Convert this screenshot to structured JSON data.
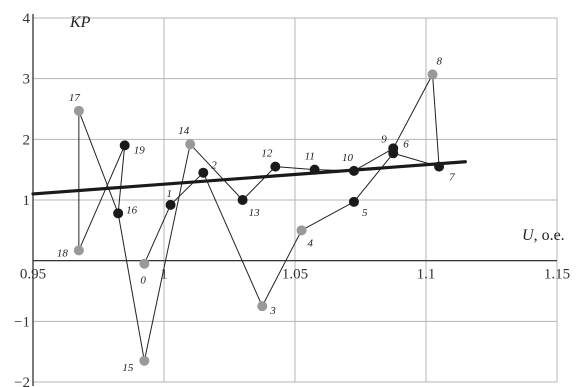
{
  "chart_data": {
    "type": "scatter",
    "title": "",
    "xlabel": "U, o.e.",
    "xlabel_italic_part": "U",
    "xlabel_rest": ", o.e.",
    "ylabel": "KP",
    "xlim": [
      0.95,
      1.15
    ],
    "ylim": [
      -2,
      4
    ],
    "grid": true,
    "x_ticks": [
      0.95,
      1.0,
      1.05,
      1.1,
      1.15
    ],
    "x_tick_labels": [
      "0.95",
      "1",
      "1.05",
      "1.1",
      "1.15"
    ],
    "y_ticks": [
      -2,
      -1,
      0,
      1,
      2,
      3,
      4
    ],
    "y_tick_labels": [
      "−2",
      "−1",
      "",
      "1",
      "2",
      "3",
      "4"
    ],
    "points": [
      {
        "label": "0",
        "x": 0.9925,
        "y": -0.05,
        "color": "#999999"
      },
      {
        "label": "1",
        "x": 1.0025,
        "y": 0.92,
        "color": "#1a1a1a"
      },
      {
        "label": "2",
        "x": 1.015,
        "y": 1.45,
        "color": "#1a1a1a"
      },
      {
        "label": "3",
        "x": 1.0375,
        "y": -0.75,
        "color": "#999999"
      },
      {
        "label": "4",
        "x": 1.0525,
        "y": 0.5,
        "color": "#999999"
      },
      {
        "label": "5",
        "x": 1.0725,
        "y": 0.97,
        "color": "#1a1a1a"
      },
      {
        "label": "6",
        "x": 1.0875,
        "y": 1.77,
        "color": "#1a1a1a"
      },
      {
        "label": "7",
        "x": 1.105,
        "y": 1.55,
        "color": "#1a1a1a"
      },
      {
        "label": "8",
        "x": 1.1025,
        "y": 3.07,
        "color": "#999999"
      },
      {
        "label": "9",
        "x": 1.0875,
        "y": 1.85,
        "color": "#1a1a1a"
      },
      {
        "label": "10",
        "x": 1.0725,
        "y": 1.48,
        "color": "#1a1a1a"
      },
      {
        "label": "11",
        "x": 1.0575,
        "y": 1.5,
        "color": "#1a1a1a"
      },
      {
        "label": "12",
        "x": 1.0425,
        "y": 1.55,
        "color": "#1a1a1a"
      },
      {
        "label": "13",
        "x": 1.03,
        "y": 1.0,
        "color": "#1a1a1a"
      },
      {
        "label": "14",
        "x": 1.01,
        "y": 1.92,
        "color": "#999999"
      },
      {
        "label": "15",
        "x": 0.9925,
        "y": -1.65,
        "color": "#999999"
      },
      {
        "label": "16",
        "x": 0.9825,
        "y": 0.78,
        "color": "#1a1a1a"
      },
      {
        "label": "17",
        "x": 0.9675,
        "y": 2.47,
        "color": "#999999"
      },
      {
        "label": "18",
        "x": 0.9675,
        "y": 0.17,
        "color": "#999999"
      },
      {
        "label": "19",
        "x": 0.985,
        "y": 1.9,
        "color": "#1a1a1a"
      }
    ],
    "connection_order": [
      "19",
      "16",
      "15",
      "14",
      "13",
      "12",
      "11",
      "10",
      "9",
      "8",
      "7",
      "6",
      "5",
      "4",
      "3",
      "2",
      "1",
      "0"
    ],
    "extra_segments": [
      [
        "17",
        "18"
      ],
      [
        "18",
        "19"
      ],
      [
        "17",
        "16"
      ]
    ],
    "trend_line": {
      "x": [
        0.95,
        1.115
      ],
      "y": [
        1.1,
        1.63
      ],
      "color": "#1a1a1a"
    }
  }
}
